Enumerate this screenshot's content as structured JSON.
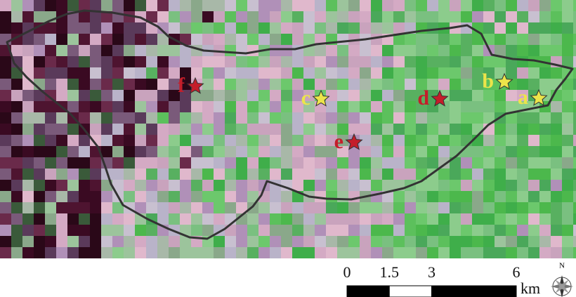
{
  "sites": [
    {
      "label": "a",
      "color": "#ece44a"
    },
    {
      "label": "b",
      "color": "#ece44a"
    },
    {
      "label": "c",
      "color": "#ece44a"
    },
    {
      "label": "d",
      "color": "#c41e2a"
    },
    {
      "label": "e",
      "color": "#c41e2a"
    },
    {
      "label": "f",
      "color": "#c41e2a"
    }
  ],
  "scale_bar": {
    "ticks": [
      0,
      1.5,
      3,
      6
    ],
    "unit": "km"
  },
  "north_arrow": {
    "label": "N"
  }
}
